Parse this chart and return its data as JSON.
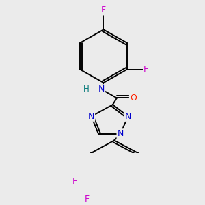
{
  "background_color": "#ebebeb",
  "atom_colors": {
    "F": "#cc00cc",
    "N": "#0000cc",
    "O": "#ff2200",
    "H": "#007777",
    "C": "#000000"
  },
  "bond_color": "#000000",
  "line_width": 1.4,
  "figsize": [
    3.0,
    3.0
  ],
  "dpi": 100
}
